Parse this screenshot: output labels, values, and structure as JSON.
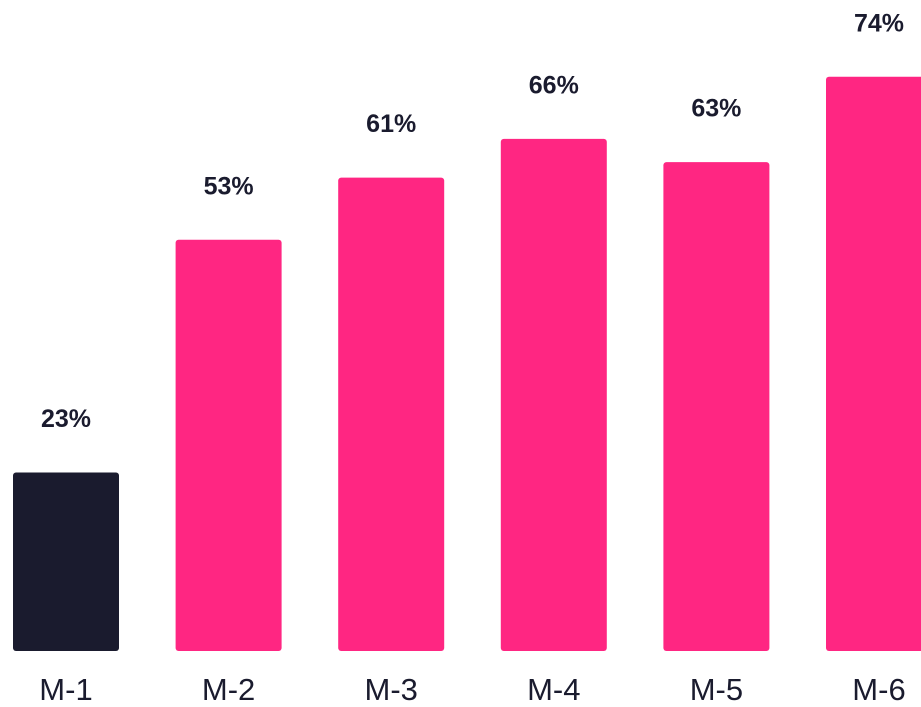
{
  "chart_data": {
    "type": "bar",
    "categories": [
      "M-1",
      "M-2",
      "M-3",
      "M-4",
      "M-5",
      "M-6"
    ],
    "values": [
      23,
      53,
      61,
      66,
      63,
      74
    ],
    "value_labels": [
      "23%",
      "53%",
      "61%",
      "66%",
      "63%",
      "74%"
    ],
    "colors": [
      "#1a1b2e",
      "#ff2682",
      "#ff2682",
      "#ff2682",
      "#ff2682",
      "#ff2682"
    ]
  }
}
